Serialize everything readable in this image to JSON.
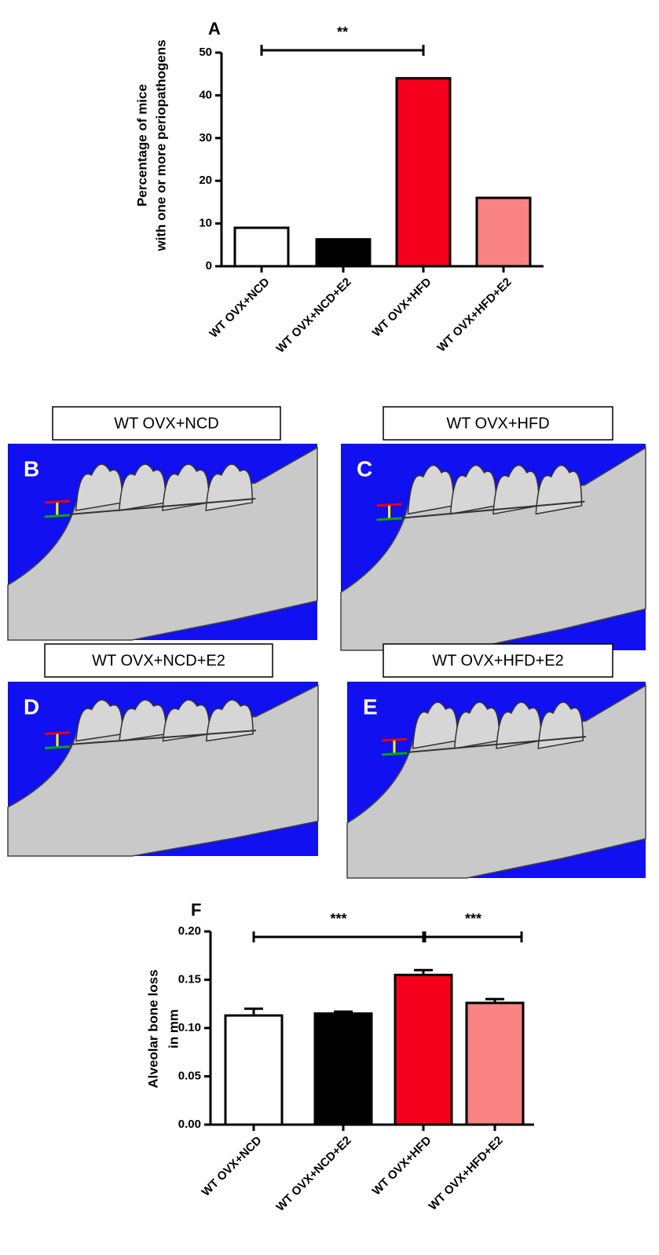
{
  "chart_data": [
    {
      "type": "bar",
      "panel_label": "A",
      "ylabel": [
        "Percentage of mice",
        "with one or more periopathogens"
      ],
      "categories": [
        "WT OVX+NCD",
        "WT OVX+NCD+E2",
        "WT OVX+HFD",
        "WT OVX+HFD+E2"
      ],
      "values": [
        9,
        6.3,
        44,
        16
      ],
      "colors": [
        "#ffffff",
        "#000000",
        "#f5001c",
        "#f98282"
      ],
      "ylim": [
        0,
        50
      ],
      "yticks": [
        0,
        10,
        20,
        30,
        40,
        50
      ],
      "annotations": [
        {
          "text": "**",
          "between": [
            0,
            2
          ]
        }
      ]
    },
    {
      "type": "bar",
      "panel_label": "F",
      "ylabel": [
        "Alveolar bone loss",
        "in mm"
      ],
      "categories": [
        "WT OVX+NCD",
        "WT OVX+NCD+E2",
        "WT OVX+HFD",
        "WT OVX+HFD+E2"
      ],
      "values": [
        0.113,
        0.115,
        0.155,
        0.126
      ],
      "errors": [
        0.007,
        0.002,
        0.005,
        0.004
      ],
      "colors": [
        "#ffffff",
        "#000000",
        "#f5001c",
        "#f98282"
      ],
      "ylim": [
        0,
        0.2
      ],
      "yticks": [
        {
          "value": 0,
          "label": "0.00"
        },
        {
          "value": 0.05,
          "label": "0.05"
        },
        {
          "value": 0.1,
          "label": "0.10"
        },
        {
          "value": 0.15,
          "label": "0.15"
        },
        {
          "value": 0.2,
          "label": "0.20"
        }
      ],
      "annotations": [
        {
          "text": "***",
          "between": [
            0,
            2
          ]
        },
        {
          "text": "***",
          "between": [
            2,
            3
          ]
        }
      ]
    }
  ],
  "panels": [
    {
      "label": "B",
      "title": "WT OVX+NCD"
    },
    {
      "label": "C",
      "title": "WT OVX+HFD"
    },
    {
      "label": "D",
      "title": "WT OVX+NCD+E2"
    },
    {
      "label": "E",
      "title": "WT OVX+HFD+E2"
    }
  ]
}
